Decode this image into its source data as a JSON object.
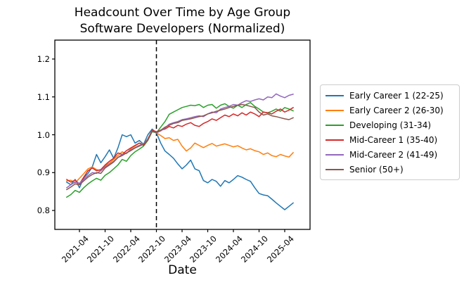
{
  "figure": {
    "title_line1": "Headcount Over Time by Age Group",
    "title_line2": "Software Developers (Normalized)",
    "background": "#ffffff",
    "axis_color": "#000000",
    "legend_border_color": "#cccccc"
  },
  "chart_data": {
    "type": "line",
    "title": "Headcount Over Time by Age Group",
    "subtitle": "Software Developers (Normalized)",
    "xlabel": "Date",
    "ylabel": "",
    "ylim": [
      0.75,
      1.25
    ],
    "grid": false,
    "legend_position": "right-outside",
    "yticks": [
      "0.8",
      "0.9",
      "1.0",
      "1.1",
      "1.2"
    ],
    "xtick_labels": [
      "2021-04",
      "2021-10",
      "2022-04",
      "2022-10",
      "2023-04",
      "2023-10",
      "2024-04",
      "2024-10",
      "2025-04"
    ],
    "vline_at": "2022-10",
    "vline_style": "black-dashed",
    "x": [
      "2021-01",
      "2021-02",
      "2021-03",
      "2021-04",
      "2021-05",
      "2021-06",
      "2021-07",
      "2021-08",
      "2021-09",
      "2021-10",
      "2021-11",
      "2021-12",
      "2022-01",
      "2022-02",
      "2022-03",
      "2022-04",
      "2022-05",
      "2022-06",
      "2022-07",
      "2022-08",
      "2022-09",
      "2022-10",
      "2022-11",
      "2022-12",
      "2023-01",
      "2023-02",
      "2023-03",
      "2023-04",
      "2023-05",
      "2023-06",
      "2023-07",
      "2023-08",
      "2023-09",
      "2023-10",
      "2023-11",
      "2023-12",
      "2024-01",
      "2024-02",
      "2024-03",
      "2024-04",
      "2024-05",
      "2024-06",
      "2024-07",
      "2024-08",
      "2024-09",
      "2024-10",
      "2024-11",
      "2024-12",
      "2025-01",
      "2025-02",
      "2025-03",
      "2025-04",
      "2025-05",
      "2025-06"
    ],
    "series": [
      {
        "name": "Early Career 1 (22-25)",
        "color": "#1f77b4",
        "values": [
          0.875,
          0.868,
          0.882,
          0.86,
          0.886,
          0.898,
          0.915,
          0.948,
          0.926,
          0.942,
          0.96,
          0.938,
          0.965,
          1.0,
          0.995,
          1.0,
          0.978,
          0.985,
          0.975,
          1.0,
          1.015,
          1.005,
          0.978,
          0.957,
          0.948,
          0.938,
          0.923,
          0.91,
          0.92,
          0.933,
          0.91,
          0.905,
          0.879,
          0.873,
          0.882,
          0.877,
          0.864,
          0.879,
          0.873,
          0.882,
          0.892,
          0.888,
          0.882,
          0.877,
          0.86,
          0.845,
          0.841,
          0.839,
          0.83,
          0.82,
          0.811,
          0.802,
          0.811,
          0.82
        ]
      },
      {
        "name": "Early Career 2 (26-30)",
        "color": "#ff7f0e",
        "values": [
          0.878,
          0.88,
          0.873,
          0.885,
          0.897,
          0.91,
          0.915,
          0.908,
          0.905,
          0.918,
          0.925,
          0.935,
          0.945,
          0.955,
          0.95,
          0.963,
          0.97,
          0.978,
          0.975,
          0.99,
          1.01,
          1.005,
          0.998,
          0.99,
          0.992,
          0.985,
          0.988,
          0.97,
          0.957,
          0.965,
          0.978,
          0.972,
          0.966,
          0.972,
          0.977,
          0.97,
          0.973,
          0.976,
          0.972,
          0.968,
          0.971,
          0.965,
          0.96,
          0.963,
          0.958,
          0.955,
          0.948,
          0.952,
          0.945,
          0.942,
          0.948,
          0.944,
          0.941,
          0.953
        ]
      },
      {
        "name": "Developing (31-34)",
        "color": "#2ca02c",
        "values": [
          0.835,
          0.842,
          0.853,
          0.848,
          0.86,
          0.87,
          0.878,
          0.885,
          0.88,
          0.893,
          0.9,
          0.91,
          0.92,
          0.935,
          0.93,
          0.945,
          0.955,
          0.962,
          0.97,
          0.985,
          1.008,
          1.005,
          1.02,
          1.035,
          1.054,
          1.06,
          1.066,
          1.072,
          1.075,
          1.078,
          1.077,
          1.08,
          1.072,
          1.078,
          1.08,
          1.07,
          1.078,
          1.082,
          1.075,
          1.07,
          1.078,
          1.072,
          1.08,
          1.085,
          1.075,
          1.068,
          1.06,
          1.058,
          1.062,
          1.068,
          1.062,
          1.072,
          1.068,
          1.063
        ]
      },
      {
        "name": "Mid-Career 1 (35-40)",
        "color": "#d62728",
        "values": [
          0.882,
          0.875,
          0.88,
          0.87,
          0.888,
          0.905,
          0.912,
          0.905,
          0.908,
          0.92,
          0.93,
          0.938,
          0.952,
          0.948,
          0.958,
          0.965,
          0.972,
          0.978,
          0.972,
          0.988,
          1.012,
          1.008,
          1.012,
          1.015,
          1.022,
          1.018,
          1.025,
          1.022,
          1.028,
          1.032,
          1.025,
          1.022,
          1.03,
          1.035,
          1.042,
          1.038,
          1.045,
          1.052,
          1.048,
          1.055,
          1.05,
          1.058,
          1.052,
          1.06,
          1.055,
          1.048,
          1.06,
          1.058,
          1.055,
          1.062,
          1.068,
          1.06,
          1.065,
          1.072
        ]
      },
      {
        "name": "Mid-Career 2 (41-49)",
        "color": "#9467bd",
        "values": [
          0.86,
          0.868,
          0.875,
          0.872,
          0.882,
          0.892,
          0.9,
          0.898,
          0.905,
          0.915,
          0.922,
          0.93,
          0.94,
          0.948,
          0.952,
          0.96,
          0.966,
          0.972,
          0.976,
          0.988,
          1.01,
          1.005,
          1.01,
          1.018,
          1.028,
          1.032,
          1.035,
          1.04,
          1.042,
          1.045,
          1.048,
          1.05,
          1.048,
          1.055,
          1.06,
          1.058,
          1.068,
          1.072,
          1.075,
          1.08,
          1.078,
          1.085,
          1.09,
          1.088,
          1.092,
          1.095,
          1.092,
          1.1,
          1.098,
          1.108,
          1.102,
          1.098,
          1.104,
          1.107
        ]
      },
      {
        "name": "Senior (50+)",
        "color": "#8c564b",
        "values": [
          0.855,
          0.862,
          0.87,
          0.868,
          0.878,
          0.888,
          0.895,
          0.9,
          0.898,
          0.912,
          0.92,
          0.928,
          0.94,
          0.945,
          0.952,
          0.958,
          0.965,
          0.97,
          0.975,
          0.986,
          1.01,
          1.006,
          1.012,
          1.02,
          1.025,
          1.03,
          1.032,
          1.038,
          1.04,
          1.042,
          1.045,
          1.048,
          1.05,
          1.055,
          1.058,
          1.062,
          1.065,
          1.068,
          1.072,
          1.075,
          1.078,
          1.08,
          1.078,
          1.075,
          1.072,
          1.06,
          1.052,
          1.055,
          1.05,
          1.048,
          1.045,
          1.042,
          1.04,
          1.045
        ]
      }
    ]
  }
}
